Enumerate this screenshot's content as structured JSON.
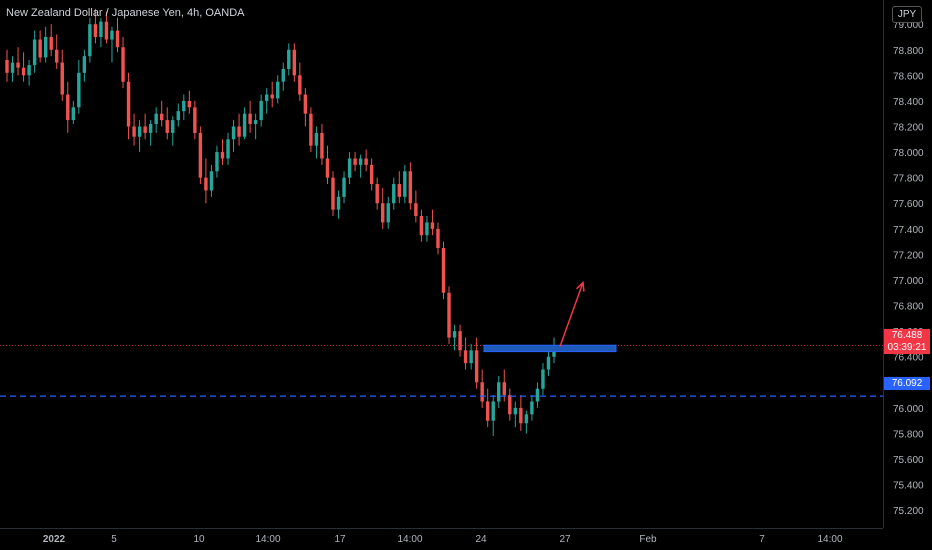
{
  "header": {
    "title": "New Zealand Dollar / Japanese Yen, 4h, OANDA",
    "currency": "JPY"
  },
  "price_tags": {
    "last_price": "76.488",
    "countdown": "03:39:21",
    "horizontal_level": "76.092"
  },
  "colors": {
    "background": "#000000",
    "up_candle": "#26a69a",
    "down_candle": "#ef5350",
    "level_line": "#2962ff",
    "zone": "#1e5bb8",
    "arrow": "#f23645",
    "last_price_tag": "#f23645",
    "level_tag": "#2962ff"
  },
  "chart_data": {
    "type": "candlestick",
    "title": "New Zealand Dollar / Japanese Yen, 4h, OANDA",
    "symbol": "NZDJPY",
    "timeframe": "4h",
    "ylim": [
      75.1,
      79.15
    ],
    "y_ticks": [
      "79.000",
      "78.800",
      "78.600",
      "78.400",
      "78.200",
      "78.000",
      "77.800",
      "77.600",
      "77.400",
      "77.200",
      "77.000",
      "76.800",
      "76.600",
      "76.400",
      "76.200",
      "76.000",
      "75.800",
      "75.600",
      "75.400",
      "75.200"
    ],
    "x_ticks": [
      "2022",
      "5",
      "10",
      "14:00",
      "17",
      "14:00",
      "24",
      "27",
      "Feb",
      "7",
      "14:00"
    ],
    "candles_ohlc": [
      [
        78.72,
        78.8,
        78.55,
        78.62
      ],
      [
        78.62,
        78.75,
        78.55,
        78.7
      ],
      [
        78.7,
        78.82,
        78.6,
        78.66
      ],
      [
        78.66,
        78.78,
        78.55,
        78.6
      ],
      [
        78.6,
        78.72,
        78.52,
        78.68
      ],
      [
        78.68,
        78.95,
        78.62,
        78.88
      ],
      [
        78.88,
        78.95,
        78.7,
        78.74
      ],
      [
        78.74,
        78.98,
        78.7,
        78.9
      ],
      [
        78.9,
        79.0,
        78.75,
        78.8
      ],
      [
        78.8,
        78.92,
        78.65,
        78.7
      ],
      [
        78.7,
        78.8,
        78.4,
        78.45
      ],
      [
        78.45,
        78.55,
        78.15,
        78.25
      ],
      [
        78.25,
        78.4,
        78.22,
        78.35
      ],
      [
        78.35,
        78.72,
        78.3,
        78.62
      ],
      [
        78.62,
        78.8,
        78.55,
        78.75
      ],
      [
        78.75,
        79.05,
        78.7,
        79.0
      ],
      [
        79.0,
        79.12,
        78.85,
        78.9
      ],
      [
        78.9,
        79.05,
        78.82,
        79.02
      ],
      [
        79.02,
        79.1,
        78.85,
        78.88
      ],
      [
        78.88,
        78.98,
        78.7,
        78.95
      ],
      [
        78.95,
        79.05,
        78.78,
        78.82
      ],
      [
        78.82,
        78.9,
        78.5,
        78.55
      ],
      [
        78.55,
        78.62,
        78.1,
        78.2
      ],
      [
        78.2,
        78.3,
        78.05,
        78.12
      ],
      [
        78.12,
        78.25,
        78.0,
        78.2
      ],
      [
        78.2,
        78.3,
        78.1,
        78.15
      ],
      [
        78.15,
        78.25,
        78.05,
        78.22
      ],
      [
        78.22,
        78.35,
        78.15,
        78.3
      ],
      [
        78.3,
        78.4,
        78.2,
        78.25
      ],
      [
        78.25,
        78.35,
        78.1,
        78.15
      ],
      [
        78.15,
        78.28,
        78.05,
        78.25
      ],
      [
        78.25,
        78.38,
        78.2,
        78.32
      ],
      [
        78.32,
        78.45,
        78.25,
        78.4
      ],
      [
        78.4,
        78.48,
        78.3,
        78.35
      ],
      [
        78.35,
        78.4,
        78.1,
        78.15
      ],
      [
        78.15,
        78.2,
        77.75,
        77.8
      ],
      [
        77.8,
        77.95,
        77.6,
        77.7
      ],
      [
        77.7,
        77.9,
        77.65,
        77.85
      ],
      [
        77.85,
        78.05,
        77.8,
        78.0
      ],
      [
        78.0,
        78.1,
        77.9,
        77.95
      ],
      [
        77.95,
        78.15,
        77.9,
        78.1
      ],
      [
        78.1,
        78.25,
        78.0,
        78.2
      ],
      [
        78.2,
        78.3,
        78.05,
        78.12
      ],
      [
        78.12,
        78.35,
        78.1,
        78.3
      ],
      [
        78.3,
        78.4,
        78.15,
        78.22
      ],
      [
        78.22,
        78.3,
        78.1,
        78.25
      ],
      [
        78.25,
        78.45,
        78.2,
        78.4
      ],
      [
        78.4,
        78.5,
        78.3,
        78.45
      ],
      [
        78.45,
        78.55,
        78.35,
        78.42
      ],
      [
        78.42,
        78.6,
        78.38,
        78.55
      ],
      [
        78.55,
        78.7,
        78.48,
        78.65
      ],
      [
        78.65,
        78.85,
        78.6,
        78.8
      ],
      [
        78.8,
        78.85,
        78.55,
        78.6
      ],
      [
        78.6,
        78.7,
        78.4,
        78.45
      ],
      [
        78.45,
        78.5,
        78.2,
        78.3
      ],
      [
        78.3,
        78.35,
        78.0,
        78.05
      ],
      [
        78.05,
        78.2,
        77.95,
        78.15
      ],
      [
        78.15,
        78.22,
        77.9,
        77.95
      ],
      [
        77.95,
        78.05,
        77.75,
        77.8
      ],
      [
        77.8,
        77.85,
        77.5,
        77.55
      ],
      [
        77.55,
        77.7,
        77.48,
        77.65
      ],
      [
        77.65,
        77.85,
        77.6,
        77.8
      ],
      [
        77.8,
        78.0,
        77.75,
        77.95
      ],
      [
        77.95,
        78.0,
        77.85,
        77.9
      ],
      [
        77.9,
        77.98,
        77.8,
        77.95
      ],
      [
        77.95,
        78.02,
        77.85,
        77.9
      ],
      [
        77.9,
        77.95,
        77.7,
        77.75
      ],
      [
        77.75,
        77.8,
        77.55,
        77.6
      ],
      [
        77.6,
        77.72,
        77.4,
        77.45
      ],
      [
        77.45,
        77.65,
        77.4,
        77.6
      ],
      [
        77.6,
        77.8,
        77.55,
        77.75
      ],
      [
        77.75,
        77.85,
        77.6,
        77.65
      ],
      [
        77.65,
        77.9,
        77.6,
        77.85
      ],
      [
        77.85,
        77.92,
        77.55,
        77.6
      ],
      [
        77.6,
        77.7,
        77.45,
        77.5
      ],
      [
        77.5,
        77.55,
        77.3,
        77.35
      ],
      [
        77.35,
        77.5,
        77.3,
        77.45
      ],
      [
        77.45,
        77.55,
        77.35,
        77.4
      ],
      [
        77.4,
        77.45,
        77.2,
        77.25
      ],
      [
        77.25,
        77.3,
        76.85,
        76.9
      ],
      [
        76.9,
        76.95,
        76.5,
        76.55
      ],
      [
        76.55,
        76.65,
        76.45,
        76.6
      ],
      [
        76.6,
        76.65,
        76.4,
        76.45
      ],
      [
        76.45,
        76.55,
        76.3,
        76.35
      ],
      [
        76.35,
        76.5,
        76.3,
        76.45
      ],
      [
        76.45,
        76.55,
        76.15,
        76.2
      ],
      [
        76.2,
        76.3,
        76.0,
        76.05
      ],
      [
        76.05,
        76.15,
        75.85,
        75.9
      ],
      [
        75.9,
        76.1,
        75.78,
        76.05
      ],
      [
        76.05,
        76.25,
        76.0,
        76.2
      ],
      [
        76.2,
        76.3,
        76.05,
        76.1
      ],
      [
        76.1,
        76.15,
        75.9,
        75.95
      ],
      [
        75.95,
        76.05,
        75.85,
        76.0
      ],
      [
        76.0,
        76.1,
        75.82,
        75.88
      ],
      [
        75.88,
        75.98,
        75.8,
        75.95
      ],
      [
        75.95,
        76.1,
        75.9,
        76.05
      ],
      [
        76.05,
        76.2,
        76.0,
        76.15
      ],
      [
        76.15,
        76.35,
        76.1,
        76.3
      ],
      [
        76.3,
        76.45,
        76.25,
        76.4
      ],
      [
        76.4,
        76.55,
        76.35,
        76.48
      ]
    ],
    "horizontal_level": 76.092,
    "last_price": 76.488,
    "zone": {
      "low": 76.44,
      "high": 76.49
    },
    "arrow": {
      "from_price": 76.48,
      "to_price": 76.98
    }
  }
}
